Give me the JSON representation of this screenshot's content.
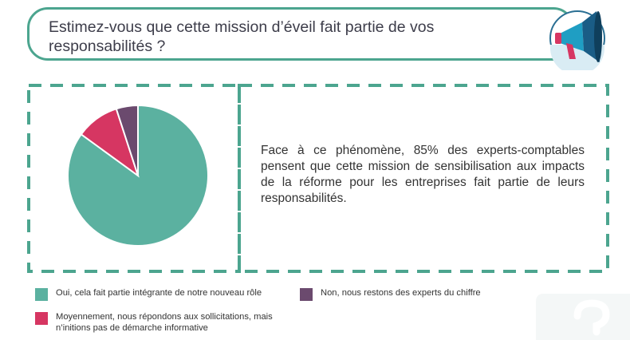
{
  "question": "Estimez-vous que cette mission d’éveil fait partie de vos responsabilités ?",
  "summary": "Face à ce phénomène, 85% des experts-comptables pensent que cette mission de sensibilisation aux impacts de la réforme pour les entreprises fait partie de leurs responsabilités.",
  "icons": {
    "megaphone": "megaphone-icon",
    "decoration": "question-mark-icon"
  },
  "colors": {
    "accent": "#4ca58f",
    "teal": "#5bb1a0",
    "pink": "#d63662",
    "purple": "#6b4a6e",
    "megaphone_blue": "#1e5f86"
  },
  "chart_data": {
    "type": "pie",
    "title": "",
    "slices": [
      {
        "label": "Oui, cela fait partie intégrante de notre nouveau rôle",
        "value": 85,
        "color": "#5bb1a0"
      },
      {
        "label": "Moyennement, nous répondons aux sollicitations, mais n’initions pas de démarche informative",
        "value": 10,
        "color": "#d63662"
      },
      {
        "label": "Non, nous restons des experts du chiffre",
        "value": 5,
        "color": "#6b4a6e"
      }
    ],
    "legend_placement": "bottom"
  }
}
